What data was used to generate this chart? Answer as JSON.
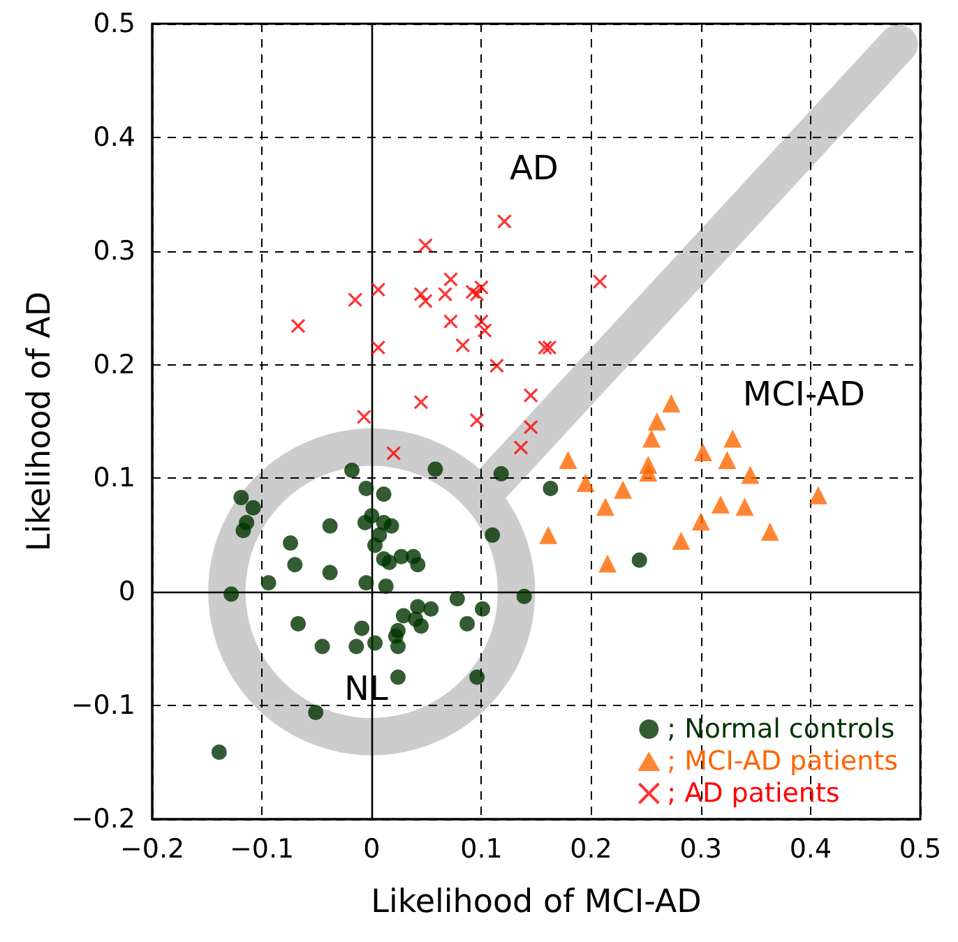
{
  "chart_data": {
    "type": "scatter",
    "xlabel": "Likelihood of MCI-AD",
    "ylabel": "Likelihood of AD",
    "xlim": [
      -0.2,
      0.5
    ],
    "ylim": [
      -0.2,
      0.5
    ],
    "xticks": [
      {
        "value": -0.2,
        "label": "−0.2"
      },
      {
        "value": -0.1,
        "label": "−0.1"
      },
      0,
      0.1,
      0.2,
      0.3,
      0.4,
      0.5
    ],
    "yticks": [
      {
        "value": -0.2,
        "label": "−0.2"
      },
      {
        "value": -0.1,
        "label": "−0.1"
      },
      0,
      0.1,
      0.2,
      0.3,
      0.4,
      0.5
    ],
    "grid": true,
    "legend": "bottom right",
    "annotations": [
      "AD",
      "MCI-AD",
      "NL"
    ],
    "series": [
      {
        "name": "; Normal controls",
        "color": "#003300",
        "marker": "circle",
        "x": [
          -0.018,
          -0.005,
          -0.119,
          -0.108,
          -0.114,
          -0.117,
          -0.038,
          -0.006,
          -0.074,
          -0.07,
          -0.038,
          -0.094,
          -0.005,
          -0.128,
          -0.067,
          -0.009,
          -0.045,
          -0.014,
          -0.051,
          -0.139,
          0.058,
          0.118,
          0.163,
          0.011,
          0,
          0.011,
          0.018,
          0.007,
          0.003,
          0.11,
          0.011,
          0.016,
          0.027,
          0.038,
          0.042,
          0.013,
          0.078,
          0.139,
          0.101,
          0.042,
          0.054,
          0.029,
          0.04,
          0.045,
          0.087,
          0.024,
          0.022,
          0.003,
          0.024,
          0.024,
          0.096,
          0.244
        ],
        "values": [
          0.107,
          0.091,
          0.083,
          0.074,
          0.061,
          0.054,
          0.058,
          0.061,
          0.043,
          0.024,
          0.017,
          0.008,
          0.008,
          -0.002,
          -0.028,
          -0.032,
          -0.048,
          -0.048,
          -0.106,
          -0.141,
          0.108,
          0.104,
          0.091,
          0.086,
          0.067,
          0.061,
          0.058,
          0.05,
          0.041,
          0.05,
          0.029,
          0.026,
          0.031,
          0.031,
          0.024,
          0.005,
          -0.006,
          -0.004,
          -0.015,
          -0.013,
          -0.015,
          -0.021,
          -0.024,
          -0.03,
          -0.028,
          -0.034,
          -0.039,
          -0.045,
          -0.048,
          -0.075,
          -0.075,
          0.028
        ]
      },
      {
        "name": "; MCI-AD patients",
        "color": "#ff6600",
        "marker": "triangle",
        "x": [
          0.273,
          0.26,
          0.255,
          0.329,
          0.179,
          0.302,
          0.324,
          0.252,
          0.252,
          0.345,
          0.195,
          0.229,
          0.407,
          0.213,
          0.318,
          0.34,
          0.3,
          0.161,
          0.363,
          0.282,
          0.215
        ],
        "values": [
          0.166,
          0.15,
          0.135,
          0.135,
          0.116,
          0.123,
          0.116,
          0.112,
          0.105,
          0.103,
          0.096,
          0.09,
          0.085,
          0.075,
          0.077,
          0.075,
          0.062,
          0.05,
          0.053,
          0.045,
          0.025
        ]
      },
      {
        "name": "; AD patients",
        "color": "#ff0000",
        "marker": "cross",
        "x": [
          0.121,
          0.049,
          0.006,
          -0.015,
          -0.067,
          0.045,
          0.049,
          0.072,
          0.067,
          0.092,
          0.096,
          0.1,
          0.072,
          0.1,
          0.103,
          0.006,
          0.083,
          0.158,
          0.162,
          0.208,
          0.114,
          0.045,
          0.145,
          -0.007,
          0.096,
          0.145,
          0.136,
          0.02
        ],
        "values": [
          0.326,
          0.305,
          0.266,
          0.257,
          0.234,
          0.262,
          0.256,
          0.275,
          0.262,
          0.264,
          0.262,
          0.268,
          0.238,
          0.238,
          0.23,
          0.215,
          0.217,
          0.215,
          0.215,
          0.273,
          0.199,
          0.167,
          0.173,
          0.154,
          0.151,
          0.145,
          0.127,
          0.122
        ]
      }
    ]
  }
}
